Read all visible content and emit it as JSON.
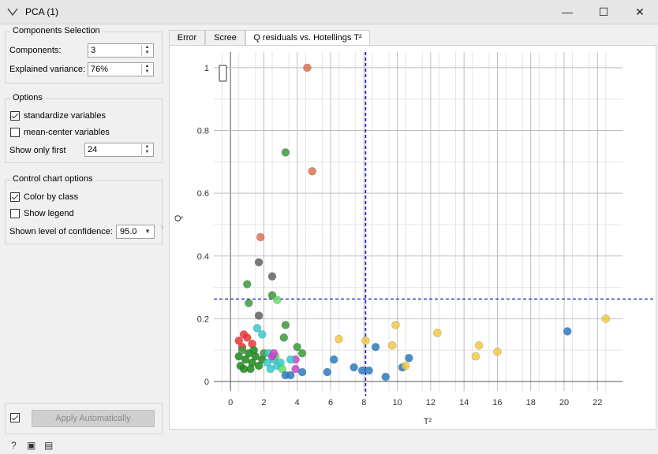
{
  "window": {
    "title": "PCA (1)",
    "minimize": "—",
    "maximize": "☐",
    "close": "✕"
  },
  "components_selection": {
    "title": "Components Selection",
    "components_label": "Components:",
    "components_value": "3",
    "explained_variance_label": "Explained variance:",
    "explained_variance_value": "76%"
  },
  "options": {
    "title": "Options",
    "standardize_label": "standardize variables",
    "standardize_checked": true,
    "mean_center_label": "mean-center variables",
    "mean_center_checked": false,
    "show_only_first_label": "Show only first",
    "show_only_first_value": "24"
  },
  "control_chart": {
    "title": "Control chart options",
    "color_by_class_label": "Color by class",
    "color_by_class_checked": true,
    "show_legend_label": "Show legend",
    "show_legend_checked": false,
    "confidence_label": "Shown level of confidence:",
    "confidence_value": "95.0"
  },
  "apply": {
    "auto_checked": true,
    "label": "Apply Automatically"
  },
  "tabs": [
    {
      "label": "Error",
      "active": false
    },
    {
      "label": "Scree",
      "active": false
    },
    {
      "label": "Q residuals vs. Hotellings T²",
      "active": true
    }
  ],
  "chart_data": {
    "type": "scatter",
    "xlabel": "T²",
    "ylabel": "Q",
    "xlim": [
      -1,
      23.5
    ],
    "ylim": [
      -0.03,
      1.05
    ],
    "x_ticks": [
      "0",
      "2",
      "4",
      "6",
      "8",
      "10",
      "12",
      "14",
      "16",
      "18",
      "20",
      "22"
    ],
    "y_ticks": [
      "0",
      "0.2",
      "0.4",
      "0.6",
      "0.8",
      "1"
    ],
    "grid": true,
    "t2_limit": 8.1,
    "q_limit": 0.263,
    "points": [
      {
        "x": 4.6,
        "y": 1.0,
        "color": "#e07050"
      },
      {
        "x": 4.9,
        "y": 0.67,
        "color": "#e07050"
      },
      {
        "x": 1.8,
        "y": 0.46,
        "color": "#e07050"
      },
      {
        "x": 3.3,
        "y": 0.73,
        "color": "#3a9a3a"
      },
      {
        "x": 1.7,
        "y": 0.38,
        "color": "#606060"
      },
      {
        "x": 2.5,
        "y": 0.335,
        "color": "#606060"
      },
      {
        "x": 1.7,
        "y": 0.21,
        "color": "#606060"
      },
      {
        "x": 1.0,
        "y": 0.31,
        "color": "#3a9a3a"
      },
      {
        "x": 2.5,
        "y": 0.275,
        "color": "#3a9a3a"
      },
      {
        "x": 2.8,
        "y": 0.26,
        "color": "#66dd66"
      },
      {
        "x": 1.1,
        "y": 0.25,
        "color": "#3a9a3a"
      },
      {
        "x": 3.3,
        "y": 0.18,
        "color": "#3a9a3a"
      },
      {
        "x": 3.2,
        "y": 0.14,
        "color": "#3a9a3a"
      },
      {
        "x": 4.0,
        "y": 0.11,
        "color": "#3a9a3a"
      },
      {
        "x": 4.3,
        "y": 0.09,
        "color": "#3a9a3a"
      },
      {
        "x": 0.8,
        "y": 0.15,
        "color": "#ee3333"
      },
      {
        "x": 0.5,
        "y": 0.13,
        "color": "#ee3333"
      },
      {
        "x": 1.0,
        "y": 0.14,
        "color": "#ee3333"
      },
      {
        "x": 0.7,
        "y": 0.11,
        "color": "#ee3333"
      },
      {
        "x": 1.3,
        "y": 0.12,
        "color": "#ee3333"
      },
      {
        "x": 1.6,
        "y": 0.17,
        "color": "#33cccc"
      },
      {
        "x": 1.9,
        "y": 0.15,
        "color": "#33cccc"
      },
      {
        "x": 0.9,
        "y": 0.07,
        "color": "#1a8a1a"
      },
      {
        "x": 1.1,
        "y": 0.09,
        "color": "#1a8a1a"
      },
      {
        "x": 1.3,
        "y": 0.06,
        "color": "#1a8a1a"
      },
      {
        "x": 1.5,
        "y": 0.08,
        "color": "#1a8a1a"
      },
      {
        "x": 1.7,
        "y": 0.05,
        "color": "#1a8a1a"
      },
      {
        "x": 0.6,
        "y": 0.05,
        "color": "#1a8a1a"
      },
      {
        "x": 0.8,
        "y": 0.04,
        "color": "#1a8a1a"
      },
      {
        "x": 1.2,
        "y": 0.04,
        "color": "#1a8a1a"
      },
      {
        "x": 1.9,
        "y": 0.07,
        "color": "#1a8a1a"
      },
      {
        "x": 0.5,
        "y": 0.08,
        "color": "#1a8a1a"
      },
      {
        "x": 1.4,
        "y": 0.1,
        "color": "#1a8a1a"
      },
      {
        "x": 0.7,
        "y": 0.1,
        "color": "#3a9a3a"
      },
      {
        "x": 2.0,
        "y": 0.09,
        "color": "#3a9a3a"
      },
      {
        "x": 2.2,
        "y": 0.06,
        "color": "#33cccc"
      },
      {
        "x": 2.4,
        "y": 0.04,
        "color": "#33cccc"
      },
      {
        "x": 2.6,
        "y": 0.07,
        "color": "#33cccc"
      },
      {
        "x": 2.8,
        "y": 0.05,
        "color": "#33cccc"
      },
      {
        "x": 3.0,
        "y": 0.06,
        "color": "#33cccc"
      },
      {
        "x": 2.3,
        "y": 0.09,
        "color": "#33cccc"
      },
      {
        "x": 3.1,
        "y": 0.04,
        "color": "#66dd66"
      },
      {
        "x": 2.7,
        "y": 0.08,
        "color": "#66dd66"
      },
      {
        "x": 2.5,
        "y": 0.08,
        "color": "#cc44cc"
      },
      {
        "x": 2.6,
        "y": 0.09,
        "color": "#cc44cc"
      },
      {
        "x": 3.9,
        "y": 0.07,
        "color": "#cc44cc"
      },
      {
        "x": 3.9,
        "y": 0.04,
        "color": "#cc44cc"
      },
      {
        "x": 3.6,
        "y": 0.07,
        "color": "#33cccc"
      },
      {
        "x": 3.3,
        "y": 0.02,
        "color": "#2a7abf"
      },
      {
        "x": 3.6,
        "y": 0.02,
        "color": "#2a7abf"
      },
      {
        "x": 4.3,
        "y": 0.03,
        "color": "#2a7abf"
      },
      {
        "x": 5.8,
        "y": 0.03,
        "color": "#2a7abf"
      },
      {
        "x": 6.2,
        "y": 0.07,
        "color": "#2a7abf"
      },
      {
        "x": 7.4,
        "y": 0.045,
        "color": "#2a7abf"
      },
      {
        "x": 7.9,
        "y": 0.035,
        "color": "#2a7abf"
      },
      {
        "x": 8.3,
        "y": 0.035,
        "color": "#2a7abf"
      },
      {
        "x": 8.7,
        "y": 0.11,
        "color": "#2a7abf"
      },
      {
        "x": 9.3,
        "y": 0.015,
        "color": "#2a7abf"
      },
      {
        "x": 10.3,
        "y": 0.045,
        "color": "#2a7abf"
      },
      {
        "x": 10.7,
        "y": 0.075,
        "color": "#2a7abf"
      },
      {
        "x": 20.2,
        "y": 0.16,
        "color": "#2a7abf"
      },
      {
        "x": 6.5,
        "y": 0.135,
        "color": "#f5c842"
      },
      {
        "x": 8.1,
        "y": 0.13,
        "color": "#f5c842"
      },
      {
        "x": 9.9,
        "y": 0.18,
        "color": "#f5c842"
      },
      {
        "x": 9.7,
        "y": 0.115,
        "color": "#f5c842"
      },
      {
        "x": 10.5,
        "y": 0.05,
        "color": "#f5c842"
      },
      {
        "x": 12.4,
        "y": 0.155,
        "color": "#f5c842"
      },
      {
        "x": 14.7,
        "y": 0.08,
        "color": "#f5c842"
      },
      {
        "x": 14.9,
        "y": 0.115,
        "color": "#f5c842"
      },
      {
        "x": 16.0,
        "y": 0.095,
        "color": "#f5c842"
      },
      {
        "x": 22.5,
        "y": 0.2,
        "color": "#f5c842"
      }
    ]
  }
}
